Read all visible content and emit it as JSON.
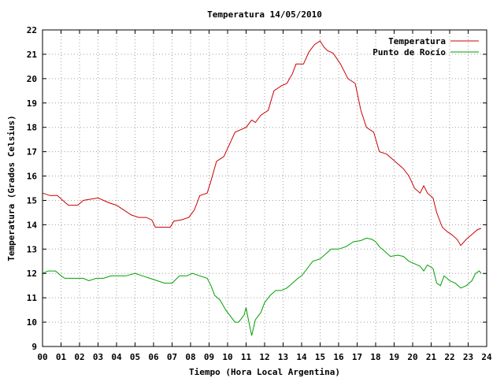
{
  "chart_data": {
    "type": "line",
    "title": "Temperatura 14/05/2010",
    "xlabel": "Tiempo (Hora Local Argentina)",
    "ylabel": "Temperatura (Grados Celsius)",
    "xlim": [
      0,
      24
    ],
    "ylim": [
      9,
      22
    ],
    "x_ticks": [
      "00",
      "01",
      "02",
      "03",
      "04",
      "05",
      "06",
      "07",
      "08",
      "09",
      "10",
      "11",
      "12",
      "13",
      "14",
      "15",
      "16",
      "17",
      "18",
      "19",
      "20",
      "21",
      "22",
      "23",
      "24"
    ],
    "y_ticks": [
      "9",
      "10",
      "11",
      "12",
      "13",
      "14",
      "15",
      "16",
      "17",
      "18",
      "19",
      "20",
      "21",
      "22"
    ],
    "grid": true,
    "legend_position": "top-right",
    "series": [
      {
        "name": "Temperatura",
        "color": "#cc0000",
        "points": [
          [
            0.0,
            15.3
          ],
          [
            0.4,
            15.2
          ],
          [
            0.8,
            15.2
          ],
          [
            1.1,
            15.0
          ],
          [
            1.4,
            14.8
          ],
          [
            1.9,
            14.8
          ],
          [
            2.2,
            15.0
          ],
          [
            2.6,
            15.05
          ],
          [
            3.0,
            15.1
          ],
          [
            3.3,
            15.0
          ],
          [
            3.6,
            14.9
          ],
          [
            4.0,
            14.8
          ],
          [
            4.4,
            14.6
          ],
          [
            4.8,
            14.4
          ],
          [
            5.2,
            14.3
          ],
          [
            5.6,
            14.3
          ],
          [
            5.9,
            14.2
          ],
          [
            6.1,
            13.9
          ],
          [
            6.5,
            13.9
          ],
          [
            6.9,
            13.9
          ],
          [
            7.1,
            14.15
          ],
          [
            7.5,
            14.2
          ],
          [
            7.9,
            14.3
          ],
          [
            8.2,
            14.6
          ],
          [
            8.5,
            15.2
          ],
          [
            8.9,
            15.3
          ],
          [
            9.1,
            15.8
          ],
          [
            9.4,
            16.6
          ],
          [
            9.8,
            16.8
          ],
          [
            10.1,
            17.3
          ],
          [
            10.4,
            17.8
          ],
          [
            10.7,
            17.9
          ],
          [
            11.0,
            18.0
          ],
          [
            11.3,
            18.3
          ],
          [
            11.5,
            18.2
          ],
          [
            11.8,
            18.5
          ],
          [
            12.2,
            18.7
          ],
          [
            12.5,
            19.5
          ],
          [
            12.9,
            19.7
          ],
          [
            13.2,
            19.8
          ],
          [
            13.5,
            20.2
          ],
          [
            13.7,
            20.6
          ],
          [
            14.1,
            20.6
          ],
          [
            14.4,
            21.1
          ],
          [
            14.7,
            21.4
          ],
          [
            15.0,
            21.55
          ],
          [
            15.2,
            21.3
          ],
          [
            15.4,
            21.15
          ],
          [
            15.7,
            21.05
          ],
          [
            16.1,
            20.6
          ],
          [
            16.5,
            20.0
          ],
          [
            16.9,
            19.8
          ],
          [
            17.2,
            18.7
          ],
          [
            17.5,
            18.0
          ],
          [
            17.9,
            17.8
          ],
          [
            18.2,
            17.0
          ],
          [
            18.6,
            16.9
          ],
          [
            18.9,
            16.7
          ],
          [
            19.2,
            16.5
          ],
          [
            19.5,
            16.3
          ],
          [
            19.8,
            16.0
          ],
          [
            20.1,
            15.5
          ],
          [
            20.4,
            15.3
          ],
          [
            20.6,
            15.6
          ],
          [
            20.8,
            15.3
          ],
          [
            21.1,
            15.1
          ],
          [
            21.3,
            14.5
          ],
          [
            21.6,
            13.9
          ],
          [
            21.9,
            13.7
          ],
          [
            22.1,
            13.6
          ],
          [
            22.4,
            13.4
          ],
          [
            22.6,
            13.15
          ],
          [
            22.9,
            13.4
          ],
          [
            23.2,
            13.6
          ],
          [
            23.5,
            13.8
          ],
          [
            23.7,
            13.85
          ]
        ]
      },
      {
        "name": "Punto de Rocío",
        "color": "#00a000",
        "points": [
          [
            0.0,
            12.0
          ],
          [
            0.3,
            12.1
          ],
          [
            0.7,
            12.1
          ],
          [
            1.0,
            11.9
          ],
          [
            1.2,
            11.8
          ],
          [
            1.8,
            11.8
          ],
          [
            2.2,
            11.8
          ],
          [
            2.5,
            11.7
          ],
          [
            2.9,
            11.8
          ],
          [
            3.3,
            11.8
          ],
          [
            3.7,
            11.9
          ],
          [
            4.1,
            11.9
          ],
          [
            4.5,
            11.9
          ],
          [
            5.0,
            12.0
          ],
          [
            5.4,
            11.9
          ],
          [
            5.8,
            11.8
          ],
          [
            6.2,
            11.7
          ],
          [
            6.6,
            11.6
          ],
          [
            7.0,
            11.6
          ],
          [
            7.4,
            11.9
          ],
          [
            7.8,
            11.9
          ],
          [
            8.1,
            12.0
          ],
          [
            8.5,
            11.9
          ],
          [
            8.9,
            11.8
          ],
          [
            9.1,
            11.5
          ],
          [
            9.3,
            11.1
          ],
          [
            9.6,
            10.9
          ],
          [
            9.9,
            10.5
          ],
          [
            10.2,
            10.2
          ],
          [
            10.4,
            10.0
          ],
          [
            10.6,
            10.0
          ],
          [
            10.9,
            10.3
          ],
          [
            11.0,
            10.6
          ],
          [
            11.1,
            10.2
          ],
          [
            11.3,
            9.45
          ],
          [
            11.5,
            10.1
          ],
          [
            11.8,
            10.4
          ],
          [
            12.0,
            10.8
          ],
          [
            12.3,
            11.1
          ],
          [
            12.6,
            11.3
          ],
          [
            12.9,
            11.3
          ],
          [
            13.2,
            11.4
          ],
          [
            13.5,
            11.6
          ],
          [
            13.8,
            11.8
          ],
          [
            14.0,
            11.9
          ],
          [
            14.3,
            12.2
          ],
          [
            14.6,
            12.5
          ],
          [
            15.0,
            12.6
          ],
          [
            15.3,
            12.8
          ],
          [
            15.6,
            13.0
          ],
          [
            16.0,
            13.0
          ],
          [
            16.4,
            13.1
          ],
          [
            16.8,
            13.3
          ],
          [
            17.2,
            13.35
          ],
          [
            17.5,
            13.45
          ],
          [
            17.8,
            13.4
          ],
          [
            18.0,
            13.3
          ],
          [
            18.2,
            13.1
          ],
          [
            18.5,
            12.9
          ],
          [
            18.8,
            12.7
          ],
          [
            19.2,
            12.75
          ],
          [
            19.5,
            12.7
          ],
          [
            19.8,
            12.5
          ],
          [
            20.1,
            12.4
          ],
          [
            20.4,
            12.3
          ],
          [
            20.6,
            12.1
          ],
          [
            20.8,
            12.35
          ],
          [
            21.1,
            12.2
          ],
          [
            21.3,
            11.6
          ],
          [
            21.5,
            11.5
          ],
          [
            21.7,
            11.9
          ],
          [
            22.0,
            11.7
          ],
          [
            22.3,
            11.6
          ],
          [
            22.6,
            11.4
          ],
          [
            22.9,
            11.5
          ],
          [
            23.2,
            11.7
          ],
          [
            23.4,
            12.0
          ],
          [
            23.6,
            12.1
          ],
          [
            23.7,
            12.0
          ]
        ]
      }
    ]
  }
}
